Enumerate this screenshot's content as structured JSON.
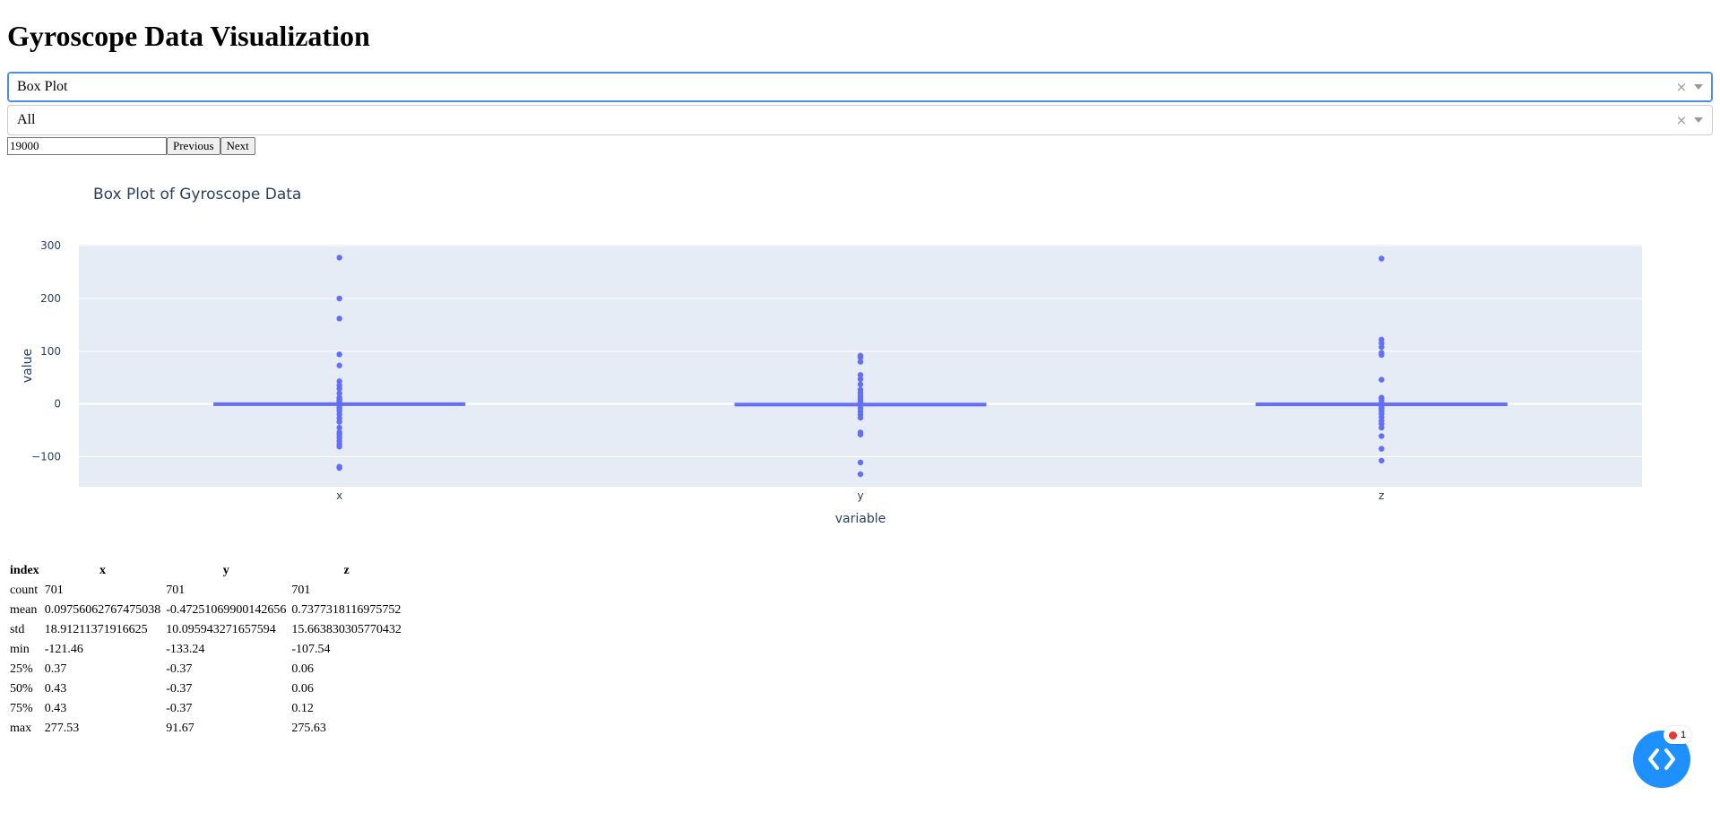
{
  "page": {
    "title": "Gyroscope Data Visualization"
  },
  "controls": {
    "plot_type": {
      "selected": "Box Plot",
      "clear_icon": "×"
    },
    "axis_filter": {
      "selected": "All",
      "clear_icon": "×"
    },
    "start_index": {
      "value": "19000"
    },
    "previous_label": "Previous",
    "next_label": "Next"
  },
  "chart_data": {
    "type": "box",
    "title": "Box Plot of Gyroscope Data",
    "xlabel": "variable",
    "ylabel": "value",
    "categories": [
      "x",
      "y",
      "z"
    ],
    "ylim": [
      -157,
      302
    ],
    "yticks": [
      -100,
      0,
      100,
      200,
      300
    ],
    "ytick_labels": [
      "−100",
      "0",
      "100",
      "200",
      "300"
    ],
    "grid": true,
    "color": "#636efa",
    "plot_bg": "#e5ecf6",
    "boxes": [
      {
        "name": "x",
        "q1": 0.37,
        "median": 0.43,
        "q3": 0.43,
        "outliers": [
          277.53,
          200,
          162,
          94,
          73,
          43,
          35,
          29,
          20,
          12,
          8,
          5,
          2,
          -3,
          -6,
          -10,
          -14,
          -20,
          -27,
          -34,
          -45,
          -54,
          -58,
          -64,
          -70,
          -76,
          -81,
          -119,
          -121.46
        ]
      },
      {
        "name": "y",
        "q1": -0.37,
        "median": -0.37,
        "q3": -0.37,
        "outliers": [
          91.67,
          88,
          80,
          55,
          47,
          37,
          27,
          21,
          15,
          10,
          5,
          1,
          -3,
          -8,
          -14,
          -20,
          -26,
          -54,
          -58,
          -111,
          -133.24
        ]
      },
      {
        "name": "z",
        "q1": 0.06,
        "median": 0.06,
        "q3": 0.12,
        "outliers": [
          275.63,
          122,
          115,
          108,
          97,
          93,
          46,
          12,
          8,
          3,
          -2,
          -6,
          -10,
          -14,
          -19,
          -25,
          -32,
          -38,
          -45,
          -61,
          -85,
          -107.54
        ]
      }
    ]
  },
  "stats_table": {
    "headers": [
      "index",
      "x",
      "y",
      "z"
    ],
    "rows": [
      [
        "count",
        "701",
        "701",
        "701"
      ],
      [
        "mean",
        "0.09756062767475038",
        "-0.47251069900142656",
        "0.7377318116975752"
      ],
      [
        "std",
        "18.91211371916625",
        "10.095943271657594",
        "15.663830305770432"
      ],
      [
        "min",
        "-121.46",
        "-133.24",
        "-107.54"
      ],
      [
        "25%",
        "0.37",
        "-0.37",
        "0.06"
      ],
      [
        "50%",
        "0.43",
        "-0.37",
        "0.06"
      ],
      [
        "75%",
        "0.43",
        "-0.37",
        "0.12"
      ],
      [
        "max",
        "277.53",
        "91.67",
        "275.63"
      ]
    ]
  },
  "fab": {
    "icon": "code-brackets-icon",
    "badge_count": "1"
  }
}
